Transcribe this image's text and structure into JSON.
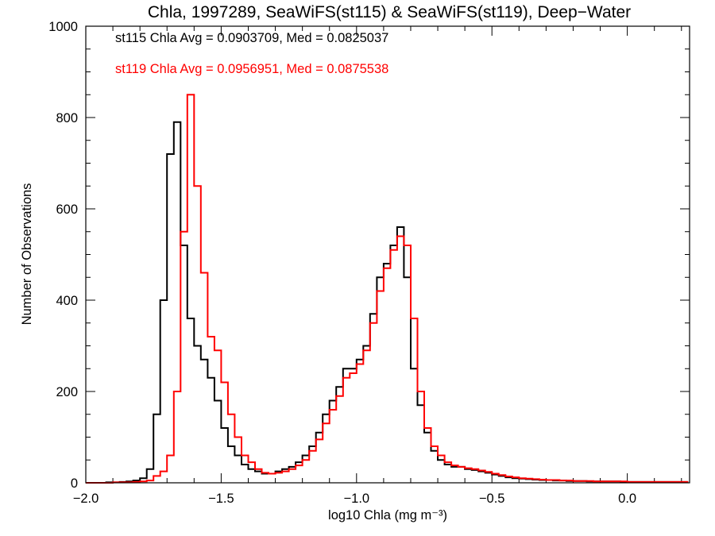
{
  "chart_data": {
    "type": "line",
    "title": "Chla, 1997289, SeaWiFS(st115) & SeaWiFS(st119), Deep−Water",
    "xlabel": "log10 Chla (mg m⁻³)",
    "ylabel": "Number of Observations",
    "xlim": [
      -2.0,
      0.23
    ],
    "ylim": [
      0,
      1000
    ],
    "x_ticks": [
      -2.0,
      -1.5,
      -1.0,
      -0.5,
      0.0
    ],
    "x_tick_labels": [
      "−2.0",
      "−1.5",
      "−1.0",
      "−0.5",
      "0.0"
    ],
    "y_ticks": [
      0,
      200,
      400,
      600,
      800,
      1000
    ],
    "y_tick_labels": [
      "0",
      "200",
      "400",
      "600",
      "800",
      "1000"
    ],
    "grid": false,
    "annotations": [
      {
        "text": "st115 Chla Avg = 0.0903709, Med = 0.0825037",
        "color": "#000000"
      },
      {
        "text": "st119 Chla Avg = 0.0956951, Med = 0.0875538",
        "color": "#ff0000"
      }
    ],
    "bin_start": -2.0,
    "bin_width": 0.025,
    "series": [
      {
        "name": "st115",
        "color": "#000000",
        "values": [
          0,
          0,
          0,
          1,
          1,
          2,
          3,
          5,
          10,
          30,
          150,
          400,
          720,
          790,
          520,
          360,
          300,
          270,
          230,
          180,
          120,
          80,
          60,
          40,
          30,
          25,
          20,
          20,
          25,
          30,
          35,
          45,
          60,
          80,
          110,
          150,
          180,
          210,
          250,
          250,
          270,
          300,
          370,
          450,
          480,
          520,
          560,
          450,
          250,
          170,
          110,
          70,
          50,
          40,
          35,
          35,
          30,
          28,
          25,
          22,
          18,
          15,
          12,
          10,
          9,
          8,
          7,
          6,
          6,
          5,
          5,
          4,
          4,
          4,
          3,
          3,
          3,
          3,
          3,
          2,
          2,
          2,
          2,
          2,
          2,
          2,
          2,
          2,
          2
        ]
      },
      {
        "name": "st119",
        "color": "#ff0000",
        "values": [
          0,
          0,
          0,
          0,
          1,
          1,
          1,
          2,
          3,
          5,
          15,
          25,
          60,
          200,
          550,
          850,
          650,
          460,
          320,
          290,
          220,
          150,
          100,
          60,
          45,
          30,
          22,
          20,
          22,
          25,
          30,
          38,
          50,
          70,
          95,
          130,
          160,
          190,
          230,
          240,
          260,
          290,
          350,
          420,
          470,
          510,
          540,
          520,
          360,
          200,
          120,
          80,
          60,
          45,
          38,
          35,
          32,
          30,
          27,
          24,
          20,
          17,
          14,
          12,
          10,
          9,
          8,
          7,
          6,
          6,
          5,
          5,
          4,
          4,
          4,
          3,
          3,
          3,
          3,
          3,
          2,
          2,
          2,
          2,
          2,
          2,
          2,
          2,
          2
        ]
      }
    ]
  }
}
